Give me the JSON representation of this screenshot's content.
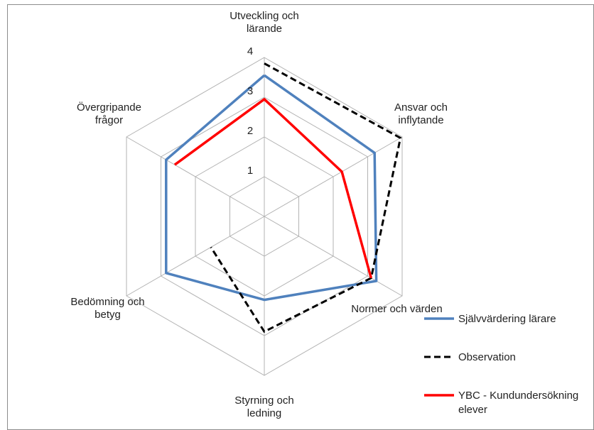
{
  "chart_data": {
    "type": "radar",
    "title": "",
    "categories": [
      [
        "Utveckling och",
        "lärande"
      ],
      [
        "Ansvar och",
        "inflytande"
      ],
      [
        "Normer och värden"
      ],
      [
        "Styrning och",
        "ledning"
      ],
      [
        "Bedömning och",
        "betyg"
      ],
      [
        "Övergripande",
        "frågor"
      ]
    ],
    "r_ticks": [
      1,
      2,
      3,
      4
    ],
    "r_range": [
      0,
      4
    ],
    "grid": true,
    "legend_position": "right",
    "series": [
      {
        "name": "Självvärdering lärare",
        "color": "#4f81bd",
        "dash": "none",
        "values": [
          3.55,
          3.2,
          3.25,
          2.1,
          2.85,
          2.85
        ]
      },
      {
        "name": "Observation",
        "color": "#000000",
        "dash": "dashed",
        "values": [
          3.85,
          3.95,
          3.1,
          2.9,
          1.55,
          null
        ]
      },
      {
        "name": "YBC - Kundundersökning elever",
        "color": "#ff0000",
        "dash": "none",
        "values": [
          2.95,
          2.25,
          3.1,
          null,
          null,
          2.6
        ]
      }
    ]
  }
}
